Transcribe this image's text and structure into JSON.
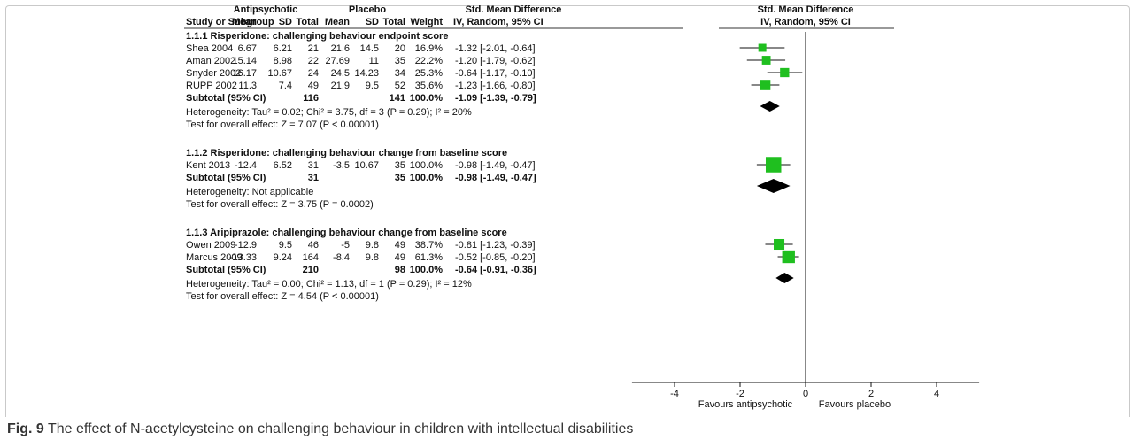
{
  "figure": {
    "caption_label": "Fig. 9",
    "caption_text": "The effect of N-acetylcysteine on challenging behaviour in children with intellectual disabilities"
  },
  "table": {
    "group1": "Antipsychotic",
    "group2": "Placebo",
    "smd_header": "Std. Mean Difference",
    "smd_sub": "IV, Random, 95% CI",
    "cols": [
      "Study or Subgroup",
      "Mean",
      "SD",
      "Total",
      "Mean",
      "SD",
      "Total",
      "Weight",
      "IV, Random, 95% CI"
    ]
  },
  "plot_header": {
    "title": "Std. Mean Difference",
    "sub": "IV, Random, 95% CI"
  },
  "axis": {
    "ticks": [
      "-4",
      "-2",
      "0",
      "2",
      "4"
    ],
    "left_label": "Favours antipsychotic",
    "right_label": "Favours placebo"
  },
  "colors": {
    "study_square": "#1fbf1f",
    "diamond": "#000000"
  },
  "chart_data": {
    "type": "forest",
    "xlim": [
      -4,
      4
    ],
    "ticks": [
      -4,
      -2,
      0,
      2,
      4
    ],
    "xlabel_left": "Favours antipsychotic",
    "xlabel_right": "Favours placebo",
    "groups": [
      {
        "title": "1.1.1 Risperidone: challenging behaviour endpoint score",
        "studies": [
          {
            "name": "Shea 2004",
            "m1": "6.67",
            "sd1": "6.21",
            "n1": "21",
            "m2": "21.6",
            "sd2": "14.5",
            "n2": "20",
            "weight": "16.9%",
            "ci": "-1.32 [-2.01, -0.64]",
            "est": -1.32,
            "lo": -2.01,
            "hi": -0.64,
            "w": 16.9
          },
          {
            "name": "Aman 2002",
            "m1": "15.14",
            "sd1": "8.98",
            "n1": "22",
            "m2": "27.69",
            "sd2": "11",
            "n2": "35",
            "weight": "22.2%",
            "ci": "-1.20 [-1.79, -0.62]",
            "est": -1.2,
            "lo": -1.79,
            "hi": -0.62,
            "w": 22.2
          },
          {
            "name": "Snyder 2002",
            "m1": "16.17",
            "sd1": "10.67",
            "n1": "24",
            "m2": "24.5",
            "sd2": "14.23",
            "n2": "34",
            "weight": "25.3%",
            "ci": "-0.64 [-1.17, -0.10]",
            "est": -0.64,
            "lo": -1.17,
            "hi": -0.1,
            "w": 25.3
          },
          {
            "name": "RUPP 2002",
            "m1": "11.3",
            "sd1": "7.4",
            "n1": "49",
            "m2": "21.9",
            "sd2": "9.5",
            "n2": "52",
            "weight": "35.6%",
            "ci": "-1.23 [-1.66, -0.80]",
            "est": -1.23,
            "lo": -1.66,
            "hi": -0.8,
            "w": 35.6
          }
        ],
        "subtotal": {
          "label": "Subtotal (95% CI)",
          "n1": "116",
          "n2": "141",
          "weight": "100.0%",
          "ci": "-1.09 [-1.39, -0.79]",
          "est": -1.09,
          "lo": -1.39,
          "hi": -0.79
        },
        "heterogeneity": "Heterogeneity: Tau² = 0.02; Chi² = 3.75, df = 3 (P = 0.29); I² = 20%",
        "overall": "Test for overall effect: Z = 7.07 (P < 0.00001)"
      },
      {
        "title": "1.1.2 Risperidone: challenging behaviour change from baseline score",
        "studies": [
          {
            "name": "Kent 2013",
            "m1": "-12.4",
            "sd1": "6.52",
            "n1": "31",
            "m2": "-3.5",
            "sd2": "10.67",
            "n2": "35",
            "weight": "100.0%",
            "ci": "-0.98 [-1.49, -0.47]",
            "est": -0.98,
            "lo": -1.49,
            "hi": -0.47,
            "w": 100.0
          }
        ],
        "subtotal": {
          "label": "Subtotal (95% CI)",
          "n1": "31",
          "n2": "35",
          "weight": "100.0%",
          "ci": "-0.98 [-1.49, -0.47]",
          "est": -0.98,
          "lo": -1.49,
          "hi": -0.47
        },
        "heterogeneity": "Heterogeneity: Not applicable",
        "overall": "Test for overall effect: Z = 3.75 (P = 0.0002)"
      },
      {
        "title": "1.1.3 Aripiprazole: challenging behaviour change from baseline score",
        "studies": [
          {
            "name": "Owen 2009",
            "m1": "-12.9",
            "sd1": "9.5",
            "n1": "46",
            "m2": "-5",
            "sd2": "9.8",
            "n2": "49",
            "weight": "38.7%",
            "ci": "-0.81 [-1.23, -0.39]",
            "est": -0.81,
            "lo": -1.23,
            "hi": -0.39,
            "w": 38.7
          },
          {
            "name": "Marcus 2009",
            "m1": "-13.33",
            "sd1": "9.24",
            "n1": "164",
            "m2": "-8.4",
            "sd2": "9.8",
            "n2": "49",
            "weight": "61.3%",
            "ci": "-0.52 [-0.85, -0.20]",
            "est": -0.52,
            "lo": -0.85,
            "hi": -0.2,
            "w": 61.3
          }
        ],
        "subtotal": {
          "label": "Subtotal (95% CI)",
          "n1": "210",
          "n2": "98",
          "weight": "100.0%",
          "ci": "-0.64 [-0.91, -0.36]",
          "est": -0.64,
          "lo": -0.91,
          "hi": -0.36
        },
        "heterogeneity": "Heterogeneity: Tau² = 0.00; Chi² = 1.13, df = 1 (P = 0.29); I² = 12%",
        "overall": "Test for overall effect: Z = 4.54 (P < 0.00001)"
      }
    ]
  }
}
